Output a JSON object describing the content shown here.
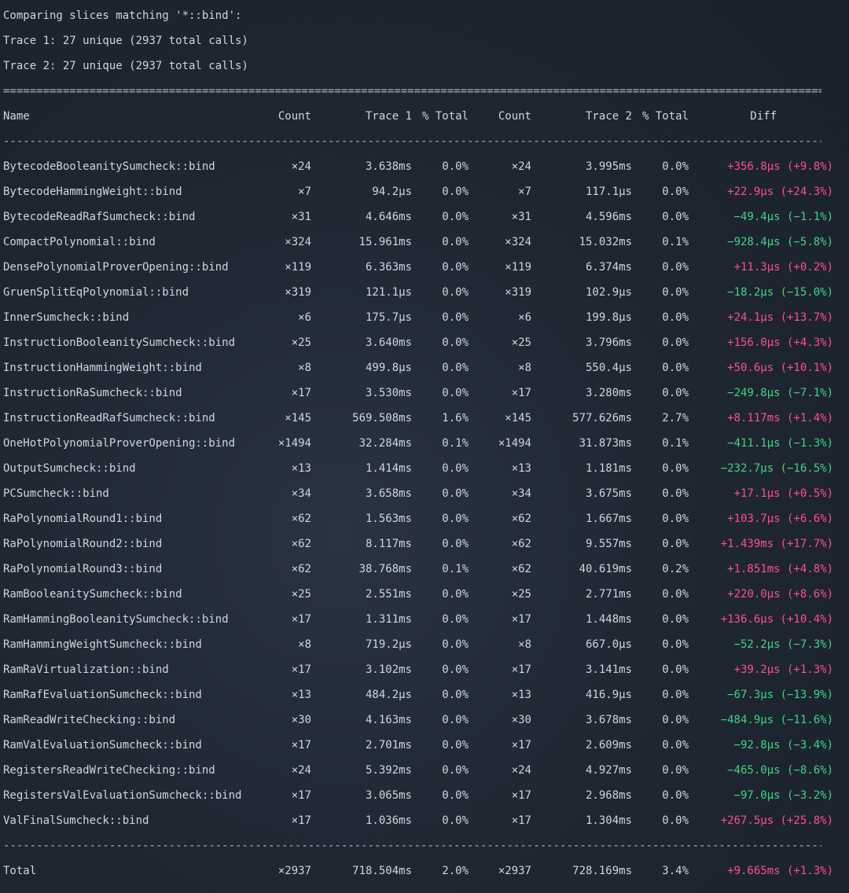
{
  "intro": [
    "Comparing slices matching '*::bind':",
    "Trace 1: 27 unique (2937 total calls)",
    "Trace 2: 27 unique (2937 total calls)"
  ],
  "rule_double": "==================================================================================================================================================",
  "rule_single": "--------------------------------------------------------------------------------------------------------------------------------------------------",
  "colors": {
    "increase": "#ff4f8a",
    "decrease": "#3ed67f",
    "text": "#cfd6de"
  },
  "headers": {
    "name": "Name",
    "count1": "Count",
    "trace1": "Trace 1",
    "pct1": "% Total",
    "count2": "Count",
    "trace2": "Trace 2",
    "pct2": "% Total",
    "diff": "Diff"
  },
  "rows": [
    {
      "name": "BytecodeBooleanitySumcheck::bind",
      "count1": "×24",
      "trace1": "3.638ms",
      "pct1": "0.0%",
      "count2": "×24",
      "trace2": "3.995ms",
      "pct2": "0.0%",
      "diff": "+356.8µs (+9.8%)",
      "dir": "pos"
    },
    {
      "name": "BytecodeHammingWeight::bind",
      "count1": "×7",
      "trace1": "94.2µs",
      "pct1": "0.0%",
      "count2": "×7",
      "trace2": "117.1µs",
      "pct2": "0.0%",
      "diff": "+22.9µs (+24.3%)",
      "dir": "pos"
    },
    {
      "name": "BytecodeReadRafSumcheck::bind",
      "count1": "×31",
      "trace1": "4.646ms",
      "pct1": "0.0%",
      "count2": "×31",
      "trace2": "4.596ms",
      "pct2": "0.0%",
      "diff": "−49.4µs (−1.1%)",
      "dir": "neg"
    },
    {
      "name": "CompactPolynomial::bind",
      "count1": "×324",
      "trace1": "15.961ms",
      "pct1": "0.0%",
      "count2": "×324",
      "trace2": "15.032ms",
      "pct2": "0.1%",
      "diff": "−928.4µs (−5.8%)",
      "dir": "neg"
    },
    {
      "name": "DensePolynomialProverOpening::bind",
      "count1": "×119",
      "trace1": "6.363ms",
      "pct1": "0.0%",
      "count2": "×119",
      "trace2": "6.374ms",
      "pct2": "0.0%",
      "diff": "+11.3µs (+0.2%)",
      "dir": "pos"
    },
    {
      "name": "GruenSplitEqPolynomial::bind",
      "count1": "×319",
      "trace1": "121.1µs",
      "pct1": "0.0%",
      "count2": "×319",
      "trace2": "102.9µs",
      "pct2": "0.0%",
      "diff": "−18.2µs (−15.0%)",
      "dir": "neg"
    },
    {
      "name": "InnerSumcheck::bind",
      "count1": "×6",
      "trace1": "175.7µs",
      "pct1": "0.0%",
      "count2": "×6",
      "trace2": "199.8µs",
      "pct2": "0.0%",
      "diff": "+24.1µs (+13.7%)",
      "dir": "pos"
    },
    {
      "name": "InstructionBooleanitySumcheck::bind",
      "count1": "×25",
      "trace1": "3.640ms",
      "pct1": "0.0%",
      "count2": "×25",
      "trace2": "3.796ms",
      "pct2": "0.0%",
      "diff": "+156.0µs (+4.3%)",
      "dir": "pos"
    },
    {
      "name": "InstructionHammingWeight::bind",
      "count1": "×8",
      "trace1": "499.8µs",
      "pct1": "0.0%",
      "count2": "×8",
      "trace2": "550.4µs",
      "pct2": "0.0%",
      "diff": "+50.6µs (+10.1%)",
      "dir": "pos"
    },
    {
      "name": "InstructionRaSumcheck::bind",
      "count1": "×17",
      "trace1": "3.530ms",
      "pct1": "0.0%",
      "count2": "×17",
      "trace2": "3.280ms",
      "pct2": "0.0%",
      "diff": "−249.8µs (−7.1%)",
      "dir": "neg"
    },
    {
      "name": "InstructionReadRafSumcheck::bind",
      "count1": "×145",
      "trace1": "569.508ms",
      "pct1": "1.6%",
      "count2": "×145",
      "trace2": "577.626ms",
      "pct2": "2.7%",
      "diff": "+8.117ms (+1.4%)",
      "dir": "pos"
    },
    {
      "name": "OneHotPolynomialProverOpening::bind",
      "count1": "×1494",
      "trace1": "32.284ms",
      "pct1": "0.1%",
      "count2": "×1494",
      "trace2": "31.873ms",
      "pct2": "0.1%",
      "diff": "−411.1µs (−1.3%)",
      "dir": "neg"
    },
    {
      "name": "OutputSumcheck::bind",
      "count1": "×13",
      "trace1": "1.414ms",
      "pct1": "0.0%",
      "count2": "×13",
      "trace2": "1.181ms",
      "pct2": "0.0%",
      "diff": "−232.7µs (−16.5%)",
      "dir": "neg"
    },
    {
      "name": "PCSumcheck::bind",
      "count1": "×34",
      "trace1": "3.658ms",
      "pct1": "0.0%",
      "count2": "×34",
      "trace2": "3.675ms",
      "pct2": "0.0%",
      "diff": "+17.1µs (+0.5%)",
      "dir": "pos"
    },
    {
      "name": "RaPolynomialRound1::bind",
      "count1": "×62",
      "trace1": "1.563ms",
      "pct1": "0.0%",
      "count2": "×62",
      "trace2": "1.667ms",
      "pct2": "0.0%",
      "diff": "+103.7µs (+6.6%)",
      "dir": "pos"
    },
    {
      "name": "RaPolynomialRound2::bind",
      "count1": "×62",
      "trace1": "8.117ms",
      "pct1": "0.0%",
      "count2": "×62",
      "trace2": "9.557ms",
      "pct2": "0.0%",
      "diff": "+1.439ms (+17.7%)",
      "dir": "pos"
    },
    {
      "name": "RaPolynomialRound3::bind",
      "count1": "×62",
      "trace1": "38.768ms",
      "pct1": "0.1%",
      "count2": "×62",
      "trace2": "40.619ms",
      "pct2": "0.2%",
      "diff": "+1.851ms (+4.8%)",
      "dir": "pos"
    },
    {
      "name": "RamBooleanitySumcheck::bind",
      "count1": "×25",
      "trace1": "2.551ms",
      "pct1": "0.0%",
      "count2": "×25",
      "trace2": "2.771ms",
      "pct2": "0.0%",
      "diff": "+220.0µs (+8.6%)",
      "dir": "pos"
    },
    {
      "name": "RamHammingBooleanitySumcheck::bind",
      "count1": "×17",
      "trace1": "1.311ms",
      "pct1": "0.0%",
      "count2": "×17",
      "trace2": "1.448ms",
      "pct2": "0.0%",
      "diff": "+136.6µs (+10.4%)",
      "dir": "pos"
    },
    {
      "name": "RamHammingWeightSumcheck::bind",
      "count1": "×8",
      "trace1": "719.2µs",
      "pct1": "0.0%",
      "count2": "×8",
      "trace2": "667.0µs",
      "pct2": "0.0%",
      "diff": "−52.2µs (−7.3%)",
      "dir": "neg"
    },
    {
      "name": "RamRaVirtualization::bind",
      "count1": "×17",
      "trace1": "3.102ms",
      "pct1": "0.0%",
      "count2": "×17",
      "trace2": "3.141ms",
      "pct2": "0.0%",
      "diff": "+39.2µs (+1.3%)",
      "dir": "pos"
    },
    {
      "name": "RamRafEvaluationSumcheck::bind",
      "count1": "×13",
      "trace1": "484.2µs",
      "pct1": "0.0%",
      "count2": "×13",
      "trace2": "416.9µs",
      "pct2": "0.0%",
      "diff": "−67.3µs (−13.9%)",
      "dir": "neg"
    },
    {
      "name": "RamReadWriteChecking::bind",
      "count1": "×30",
      "trace1": "4.163ms",
      "pct1": "0.0%",
      "count2": "×30",
      "trace2": "3.678ms",
      "pct2": "0.0%",
      "diff": "−484.9µs (−11.6%)",
      "dir": "neg"
    },
    {
      "name": "RamValEvaluationSumcheck::bind",
      "count1": "×17",
      "trace1": "2.701ms",
      "pct1": "0.0%",
      "count2": "×17",
      "trace2": "2.609ms",
      "pct2": "0.0%",
      "diff": "−92.8µs (−3.4%)",
      "dir": "neg"
    },
    {
      "name": "RegistersReadWriteChecking::bind",
      "count1": "×24",
      "trace1": "5.392ms",
      "pct1": "0.0%",
      "count2": "×24",
      "trace2": "4.927ms",
      "pct2": "0.0%",
      "diff": "−465.0µs (−8.6%)",
      "dir": "neg"
    },
    {
      "name": "RegistersValEvaluationSumcheck::bind",
      "count1": "×17",
      "trace1": "3.065ms",
      "pct1": "0.0%",
      "count2": "×17",
      "trace2": "2.968ms",
      "pct2": "0.0%",
      "diff": "−97.0µs (−3.2%)",
      "dir": "neg"
    },
    {
      "name": "ValFinalSumcheck::bind",
      "count1": "×17",
      "trace1": "1.036ms",
      "pct1": "0.0%",
      "count2": "×17",
      "trace2": "1.304ms",
      "pct2": "0.0%",
      "diff": "+267.5µs (+25.8%)",
      "dir": "pos"
    }
  ],
  "total": {
    "name": "Total",
    "count1": "×2937",
    "trace1": "718.504ms",
    "pct1": "2.0%",
    "count2": "×2937",
    "trace2": "728.169ms",
    "pct2": "3.4%",
    "diff": "+9.665ms (+1.3%)",
    "dir": "pos"
  }
}
